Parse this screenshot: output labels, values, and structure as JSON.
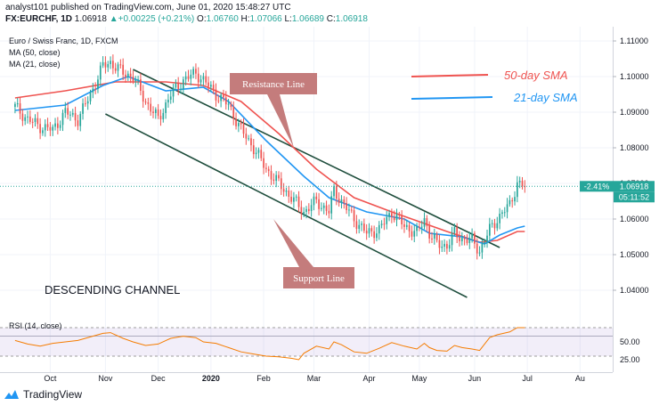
{
  "header": {
    "published": "analyst101 published on TradingView.com, June 01, 2020 15:48:27 UTC",
    "symbol": "FX:EURCHF, 1D",
    "last": "1.06918",
    "change": "+0.00225 (+0.21%)",
    "o_label": "O:",
    "o": "1.06760",
    "h_label": "H:",
    "h": "1.07066",
    "l_label": "L:",
    "l": "1.06689",
    "c_label": "C:",
    "c": "1.06918"
  },
  "footer": {
    "brand": "TradingView"
  },
  "chart_data": {
    "type": "candlestick",
    "title": "Euro / Swiss Franc, 1D, FXCM",
    "legend": [
      "MA (50, close)",
      "MA (21, close)"
    ],
    "ylim": [
      1.034,
      1.114
    ],
    "y_ticks": [
      "1.11000",
      "1.10000",
      "1.09000",
      "1.08000",
      "1.07000",
      "1.06000",
      "1.05000",
      "1.04000"
    ],
    "x_ticks": [
      "Oct",
      "Nov",
      "Dec",
      "2020",
      "Feb",
      "Mar",
      "Apr",
      "May",
      "Jun",
      "Jul",
      "Au"
    ],
    "last_price": {
      "label": "1.06918",
      "change": "-2.41%",
      "countdown": "05:11:52",
      "value": 1.06918
    },
    "annotations": {
      "resistance": "Resistance Line",
      "support": "Support Line",
      "channel": "DESCENDING CHANNEL",
      "sma50": "50-day SMA",
      "sma21": "21-day SMA"
    },
    "price_path": [
      [
        0,
        1.0915
      ],
      [
        5,
        1.088
      ],
      [
        10,
        1.086
      ],
      [
        15,
        1.085
      ],
      [
        20,
        1.09
      ],
      [
        25,
        1.088
      ],
      [
        30,
        1.095
      ],
      [
        35,
        1.103
      ],
      [
        38,
        1.104
      ],
      [
        43,
        1.101
      ],
      [
        47,
        1.1
      ],
      [
        52,
        1.093
      ],
      [
        57,
        1.088
      ],
      [
        62,
        1.095
      ],
      [
        67,
        1.099
      ],
      [
        72,
        1.101
      ],
      [
        75,
        1.099
      ],
      [
        80,
        1.095
      ],
      [
        85,
        1.092
      ],
      [
        90,
        1.085
      ],
      [
        95,
        1.08
      ],
      [
        100,
        1.074
      ],
      [
        105,
        1.07
      ],
      [
        110,
        1.066
      ],
      [
        115,
        1.062
      ],
      [
        120,
        1.065
      ],
      [
        125,
        1.062
      ],
      [
        127,
        1.068
      ],
      [
        130,
        1.065
      ],
      [
        135,
        1.06
      ],
      [
        140,
        1.056
      ],
      [
        145,
        1.057
      ],
      [
        150,
        1.062
      ],
      [
        155,
        1.058
      ],
      [
        160,
        1.056
      ],
      [
        163,
        1.06
      ],
      [
        165,
        1.056
      ],
      [
        168,
        1.053
      ],
      [
        172,
        1.0525
      ],
      [
        175,
        1.056
      ],
      [
        178,
        1.0545
      ],
      [
        182,
        1.054
      ],
      [
        185,
        1.051
      ],
      [
        189,
        1.057
      ],
      [
        192,
        1.06
      ],
      [
        197,
        1.064
      ],
      [
        200,
        1.07
      ],
      [
        203,
        1.0692
      ]
    ],
    "ma50": [
      [
        0,
        1.094
      ],
      [
        20,
        1.096
      ],
      [
        40,
        1.0985
      ],
      [
        60,
        1.0985
      ],
      [
        75,
        1.0975
      ],
      [
        90,
        1.093
      ],
      [
        105,
        1.084
      ],
      [
        120,
        1.074
      ],
      [
        135,
        1.066
      ],
      [
        150,
        1.062
      ],
      [
        160,
        1.0595
      ],
      [
        172,
        1.0565
      ],
      [
        185,
        1.0535
      ],
      [
        192,
        1.054
      ],
      [
        200,
        1.0565
      ],
      [
        203,
        1.0565
      ]
    ],
    "ma21": [
      [
        0,
        1.0905
      ],
      [
        20,
        1.092
      ],
      [
        35,
        1.0975
      ],
      [
        45,
        1.1
      ],
      [
        60,
        1.096
      ],
      [
        75,
        1.097
      ],
      [
        85,
        1.093
      ],
      [
        100,
        1.082
      ],
      [
        115,
        1.072
      ],
      [
        125,
        1.066
      ],
      [
        140,
        1.062
      ],
      [
        155,
        1.06
      ],
      [
        165,
        1.056
      ],
      [
        178,
        1.055
      ],
      [
        187,
        1.053
      ],
      [
        193,
        1.0555
      ],
      [
        200,
        1.0575
      ],
      [
        203,
        1.058
      ]
    ],
    "channel_upper": [
      [
        47,
        1.102
      ],
      [
        193,
        1.052
      ]
    ],
    "channel_lower": [
      [
        36,
        1.0895
      ],
      [
        180,
        1.038
      ]
    ],
    "rsi": {
      "label": "RSI (14, close)",
      "ylim": [
        10,
        90
      ],
      "y_ticks": [
        "50.00",
        "25.00"
      ],
      "band": [
        30,
        70
      ],
      "values": [
        [
          0,
          52
        ],
        [
          5,
          47
        ],
        [
          10,
          44
        ],
        [
          15,
          48
        ],
        [
          20,
          50
        ],
        [
          25,
          52
        ],
        [
          30,
          57
        ],
        [
          35,
          62
        ],
        [
          38,
          63
        ],
        [
          43,
          55
        ],
        [
          47,
          50
        ],
        [
          52,
          45
        ],
        [
          57,
          47
        ],
        [
          62,
          55
        ],
        [
          67,
          58
        ],
        [
          72,
          56
        ],
        [
          75,
          50
        ],
        [
          80,
          48
        ],
        [
          85,
          42
        ],
        [
          90,
          36
        ],
        [
          95,
          33
        ],
        [
          100,
          30
        ],
        [
          105,
          29
        ],
        [
          110,
          27
        ],
        [
          113,
          25
        ],
        [
          115,
          34
        ],
        [
          120,
          44
        ],
        [
          125,
          40
        ],
        [
          127,
          50
        ],
        [
          130,
          46
        ],
        [
          135,
          36
        ],
        [
          140,
          34
        ],
        [
          145,
          41
        ],
        [
          150,
          49
        ],
        [
          155,
          44
        ],
        [
          160,
          40
        ],
        [
          163,
          48
        ],
        [
          165,
          42
        ],
        [
          168,
          38
        ],
        [
          172,
          37
        ],
        [
          175,
          45
        ],
        [
          178,
          42
        ],
        [
          182,
          40
        ],
        [
          185,
          38
        ],
        [
          189,
          56
        ],
        [
          192,
          60
        ],
        [
          197,
          64
        ],
        [
          200,
          70
        ],
        [
          203,
          70
        ]
      ]
    }
  }
}
